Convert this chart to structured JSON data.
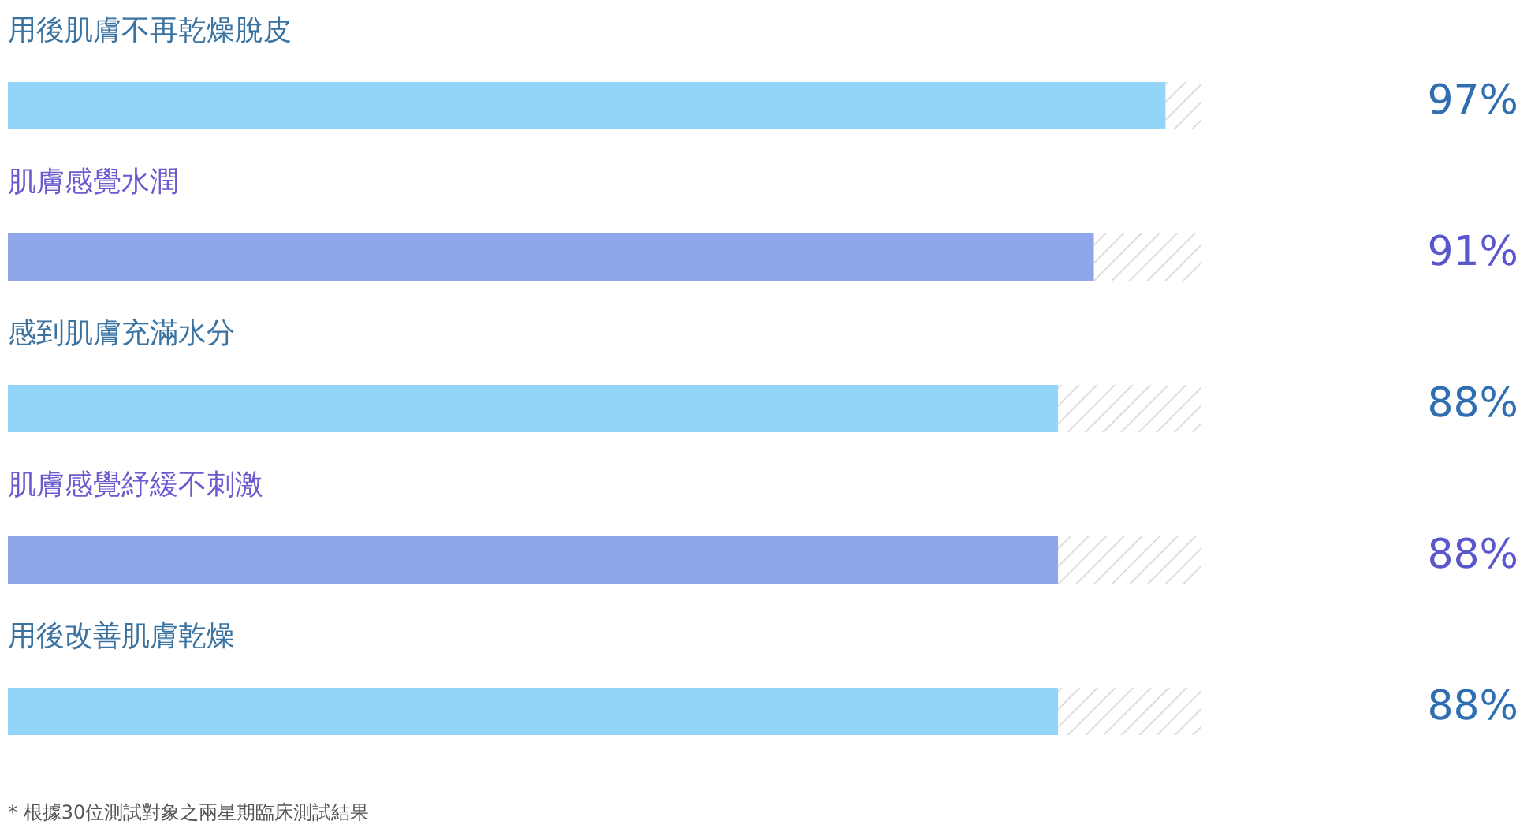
{
  "chart_data": {
    "type": "bar",
    "orientation": "horizontal",
    "stacked": true,
    "categories": [
      "用後肌膚不再乾燥脫皮",
      "肌膚感覺水潤",
      "感到肌膚充滿水分",
      "肌膚感覺紓緩不刺激",
      "用後改善肌膚乾燥"
    ],
    "series": [
      {
        "values": [
          97,
          91,
          88,
          88,
          88
        ],
        "colors": [
          "#93d4f8",
          "#8fa6ea",
          "#93d4f8",
          "#8fa6ea",
          "#93d4f8"
        ],
        "value_labels": [
          "97%",
          "91%",
          "88%",
          "88%",
          "88%"
        ]
      },
      {
        "values": [
          3,
          9,
          12,
          12,
          12
        ],
        "color": "#dddddd"
      }
    ],
    "xlim": [
      0,
      100
    ],
    "tick_labels": false,
    "annotations": [
      "* 根據30位測試對象之兩星期臨床測試結果"
    ]
  }
}
